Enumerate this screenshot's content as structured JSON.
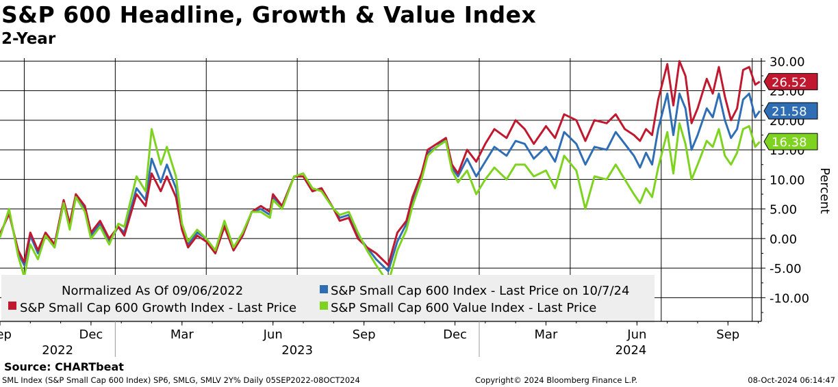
{
  "title": "S&P 600 Headline, Growth & Value Index",
  "subtitle": "2-Year",
  "source": "Source: CHARTbeat",
  "footer": {
    "left": "SML Index (S&P Small Cap 600 Index) SP6, SMLG, SMLV 2Y%  Daily 05SEP2022-08OCT2024",
    "center": "Copyright© 2024 Bloomberg Finance L.P.",
    "right": "08-Oct-2024 06:14:47"
  },
  "chart_data": {
    "type": "line",
    "ylabel": "Percent",
    "ylim": [
      -14,
      30.5
    ],
    "yticks": [
      30,
      25,
      20,
      15,
      10,
      5,
      0,
      -5,
      -10
    ],
    "ytick_labels": [
      "30.00",
      "25.00",
      "20.00",
      "15.00",
      "10.00",
      "5.00",
      "0.00",
      "-5.00",
      "-10.00"
    ],
    "xlim": [
      0,
      25.1
    ],
    "x_unit": "months since 2022-09-06",
    "month_ticks": [
      {
        "label": "Sep",
        "x": 0.0
      },
      {
        "label": "Dec",
        "x": 3.0
      },
      {
        "label": "Mar",
        "x": 6.0
      },
      {
        "label": "Jun",
        "x": 9.0
      },
      {
        "label": "Sep",
        "x": 12.0
      },
      {
        "label": "Dec",
        "x": 15.0
      },
      {
        "label": "Mar",
        "x": 18.0
      },
      {
        "label": "Jun",
        "x": 21.0
      },
      {
        "label": "Sep",
        "x": 24.0
      }
    ],
    "year_labels": [
      {
        "label": "2022",
        "x": 1.9
      },
      {
        "label": "2023",
        "x": 9.8
      },
      {
        "label": "2024",
        "x": 20.8
      }
    ],
    "year_dividers": [
      3.8,
      15.8
    ],
    "vertical_gridlines": [
      0.8,
      3.8,
      6.8,
      9.8,
      12.8,
      15.8,
      18.8,
      21.8,
      24.8
    ],
    "legend": {
      "header": "Normalized As Of 09/06/2022",
      "position": "bottom-left"
    },
    "series": [
      {
        "name": "S&P Small Cap 600 Index - Last Price on 10/7/24",
        "color": "#2f6eb5",
        "last_value": 21.58,
        "last_label": "21.58",
        "x": [
          0,
          0.3,
          0.6,
          0.8,
          1.0,
          1.25,
          1.5,
          1.8,
          2.1,
          2.3,
          2.5,
          2.8,
          3.0,
          3.3,
          3.6,
          3.9,
          4.1,
          4.5,
          4.8,
          5.0,
          5.3,
          5.5,
          5.8,
          6.0,
          6.2,
          6.5,
          6.8,
          7.1,
          7.4,
          7.7,
          8.0,
          8.3,
          8.6,
          8.9,
          9.0,
          9.3,
          9.7,
          10.0,
          10.3,
          10.6,
          11.0,
          11.2,
          11.5,
          11.8,
          12.1,
          12.4,
          12.8,
          13.1,
          13.4,
          13.6,
          13.9,
          14.1,
          14.4,
          14.7,
          14.9,
          15.1,
          15.4,
          15.7,
          16.0,
          16.3,
          16.7,
          17.0,
          17.3,
          17.6,
          18.0,
          18.3,
          18.6,
          19.0,
          19.3,
          19.6,
          20.0,
          20.3,
          20.6,
          20.9,
          21.1,
          21.3,
          21.5,
          21.7,
          22.0,
          22.2,
          22.4,
          22.6,
          22.8,
          23.0,
          23.3,
          23.5,
          23.7,
          23.9,
          24.1,
          24.3,
          24.5,
          24.7,
          24.9,
          25.05
        ],
        "y": [
          0.5,
          4.5,
          -2.5,
          -4.5,
          0.5,
          -2.5,
          0.5,
          -1.5,
          6.0,
          2.0,
          7.0,
          5.0,
          0.5,
          2.5,
          -0.5,
          2.0,
          1.0,
          8.5,
          6.5,
          13.5,
          9.5,
          12.5,
          8.5,
          2.0,
          -1.0,
          1.0,
          0.0,
          -2.5,
          2.5,
          -2.0,
          0.5,
          4.5,
          5.0,
          4.0,
          7.0,
          5.5,
          10.5,
          10.5,
          8.0,
          8.5,
          5.0,
          3.5,
          4.0,
          0.5,
          -1.5,
          -3.5,
          -5.5,
          -0.5,
          2.5,
          6.5,
          10.5,
          14.5,
          15.5,
          17.0,
          12.0,
          10.5,
          13.5,
          10.5,
          13.0,
          15.5,
          14.0,
          16.5,
          16.0,
          13.5,
          15.5,
          13.0,
          18.0,
          16.0,
          12.5,
          15.5,
          15.0,
          18.0,
          16.0,
          14.0,
          12.0,
          14.5,
          12.5,
          18.5,
          24.5,
          17.5,
          24.5,
          22.0,
          15.0,
          17.5,
          22.0,
          20.5,
          24.5,
          20.0,
          17.0,
          18.5,
          23.5,
          24.5,
          20.5,
          21.58
        ]
      },
      {
        "name": "S&P Small Cap 600 Growth Index - Last Price",
        "color": "#c0182f",
        "last_value": 26.52,
        "last_label": "26.52",
        "x": [
          0,
          0.3,
          0.6,
          0.8,
          1.0,
          1.25,
          1.5,
          1.8,
          2.1,
          2.3,
          2.5,
          2.8,
          3.0,
          3.3,
          3.6,
          3.9,
          4.1,
          4.5,
          4.8,
          5.0,
          5.3,
          5.5,
          5.8,
          6.0,
          6.2,
          6.5,
          6.8,
          7.1,
          7.4,
          7.7,
          8.0,
          8.3,
          8.6,
          8.9,
          9.0,
          9.3,
          9.7,
          10.0,
          10.3,
          10.6,
          11.0,
          11.2,
          11.5,
          11.8,
          12.1,
          12.4,
          12.8,
          13.1,
          13.4,
          13.6,
          13.9,
          14.1,
          14.4,
          14.7,
          14.9,
          15.1,
          15.4,
          15.7,
          16.0,
          16.3,
          16.7,
          17.0,
          17.3,
          17.6,
          18.0,
          18.3,
          18.6,
          19.0,
          19.3,
          19.6,
          20.0,
          20.3,
          20.6,
          20.9,
          21.1,
          21.3,
          21.5,
          21.7,
          22.0,
          22.2,
          22.4,
          22.6,
          22.8,
          23.0,
          23.3,
          23.5,
          23.7,
          23.9,
          24.1,
          24.3,
          24.5,
          24.7,
          24.9,
          25.05
        ],
        "y": [
          0.8,
          4.2,
          -2.0,
          -4.0,
          1.0,
          -2.0,
          1.0,
          -1.0,
          6.5,
          2.5,
          7.5,
          5.5,
          1.0,
          3.0,
          0.0,
          2.0,
          0.5,
          7.5,
          5.5,
          11.0,
          8.0,
          10.5,
          7.0,
          1.5,
          -1.5,
          0.5,
          -0.5,
          -2.5,
          2.0,
          -2.0,
          0.5,
          4.5,
          5.5,
          4.5,
          7.5,
          5.5,
          10.5,
          10.5,
          8.0,
          8.5,
          5.0,
          3.0,
          3.5,
          0.0,
          -1.5,
          -2.5,
          -4.5,
          1.0,
          3.0,
          7.0,
          11.0,
          15.0,
          16.0,
          17.0,
          12.5,
          11.0,
          15.0,
          13.0,
          16.0,
          18.5,
          17.0,
          20.0,
          18.5,
          16.0,
          19.0,
          17.0,
          21.0,
          20.0,
          16.5,
          20.0,
          19.5,
          21.0,
          18.5,
          17.5,
          16.5,
          18.5,
          17.5,
          23.5,
          29.5,
          22.5,
          30.0,
          27.5,
          19.5,
          22.0,
          27.0,
          24.5,
          29.0,
          24.0,
          20.0,
          22.0,
          28.5,
          29.0,
          26.0,
          26.52
        ]
      },
      {
        "name": "S&P Small Cap 600 Value Index - Last Price",
        "color": "#7ed320",
        "last_value": 16.38,
        "last_label": "16.38",
        "x": [
          0,
          0.3,
          0.6,
          0.8,
          1.0,
          1.25,
          1.5,
          1.8,
          2.1,
          2.3,
          2.5,
          2.8,
          3.0,
          3.3,
          3.6,
          3.9,
          4.1,
          4.5,
          4.8,
          5.0,
          5.3,
          5.5,
          5.8,
          6.0,
          6.2,
          6.5,
          6.8,
          7.1,
          7.4,
          7.7,
          8.0,
          8.3,
          8.6,
          8.9,
          9.0,
          9.3,
          9.7,
          10.0,
          10.3,
          10.6,
          11.0,
          11.2,
          11.5,
          11.8,
          12.1,
          12.4,
          12.8,
          13.1,
          13.4,
          13.6,
          13.9,
          14.1,
          14.4,
          14.7,
          14.9,
          15.1,
          15.4,
          15.7,
          16.0,
          16.3,
          16.7,
          17.0,
          17.3,
          17.6,
          18.0,
          18.3,
          18.6,
          19.0,
          19.3,
          19.6,
          20.0,
          20.3,
          20.6,
          20.9,
          21.1,
          21.3,
          21.5,
          21.7,
          22.0,
          22.2,
          22.4,
          22.6,
          22.8,
          23.0,
          23.3,
          23.5,
          23.7,
          23.9,
          24.1,
          24.3,
          24.5,
          24.7,
          24.9,
          25.05
        ],
        "y": [
          0.2,
          5.0,
          -3.0,
          -6.5,
          -1.0,
          -3.5,
          0.5,
          -1.5,
          6.0,
          1.5,
          7.0,
          4.5,
          0.0,
          2.0,
          -1.0,
          2.5,
          2.0,
          10.5,
          8.0,
          18.5,
          12.5,
          15.5,
          10.5,
          2.5,
          -0.5,
          1.5,
          0.0,
          -2.0,
          3.0,
          -1.5,
          1.0,
          4.5,
          4.5,
          3.5,
          6.5,
          5.0,
          10.5,
          11.0,
          8.5,
          8.0,
          5.0,
          4.0,
          4.5,
          1.0,
          -2.0,
          -4.5,
          -7.5,
          -2.0,
          1.5,
          5.5,
          10.0,
          14.0,
          15.5,
          16.5,
          11.5,
          9.5,
          11.5,
          7.5,
          10.0,
          12.0,
          10.0,
          12.5,
          12.5,
          10.5,
          11.5,
          8.5,
          14.0,
          11.5,
          5.0,
          10.5,
          10.0,
          12.5,
          10.0,
          7.5,
          6.0,
          8.5,
          7.0,
          12.0,
          18.0,
          11.0,
          19.5,
          16.0,
          10.0,
          12.5,
          16.5,
          15.5,
          18.5,
          14.0,
          12.5,
          14.5,
          18.5,
          19.0,
          15.5,
          16.38
        ]
      }
    ]
  }
}
